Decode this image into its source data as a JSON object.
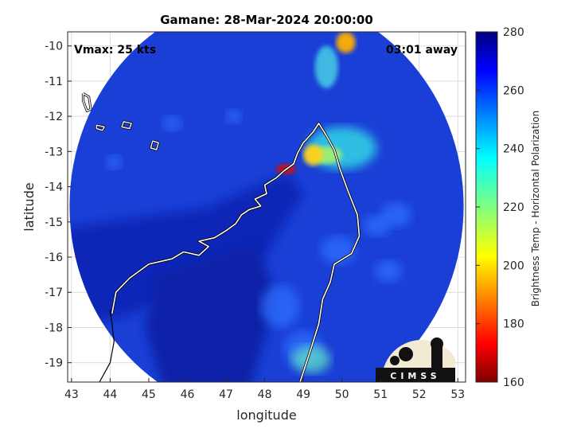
{
  "chart_data": {
    "type": "heatmap",
    "title": "Gamane: 28-Mar-2024 20:00:00",
    "annotations": {
      "vmax": "Vmax: 25 kts",
      "time_away": "03:01 away"
    },
    "xlabel": "longitude",
    "ylabel": "latitude",
    "xlim": [
      42.9,
      53.2
    ],
    "ylim": [
      -19.55,
      -9.6
    ],
    "y_reversed": true,
    "xticks": [
      43,
      44,
      45,
      46,
      47,
      48,
      49,
      50,
      51,
      52,
      53
    ],
    "yticks": [
      -10,
      -11,
      -12,
      -13,
      -14,
      -15,
      -16,
      -17,
      -18,
      -19
    ],
    "grid": true,
    "colormap": "jet",
    "colorbar": {
      "label": "Brightness Temp - Horizontal Polarization",
      "range": [
        160,
        280
      ],
      "ticks": [
        160,
        180,
        200,
        220,
        240,
        260,
        280
      ]
    },
    "swath": {
      "center_lon": 48.05,
      "center_lat": -14.55,
      "radius_lon": 5.1,
      "radius_lat": 6.0
    },
    "logo": "CIMSS"
  },
  "colors": {
    "background": "#ffffff",
    "swath_base": "#1a3fd6",
    "coastline": "#ffffff",
    "border": "#000000"
  }
}
